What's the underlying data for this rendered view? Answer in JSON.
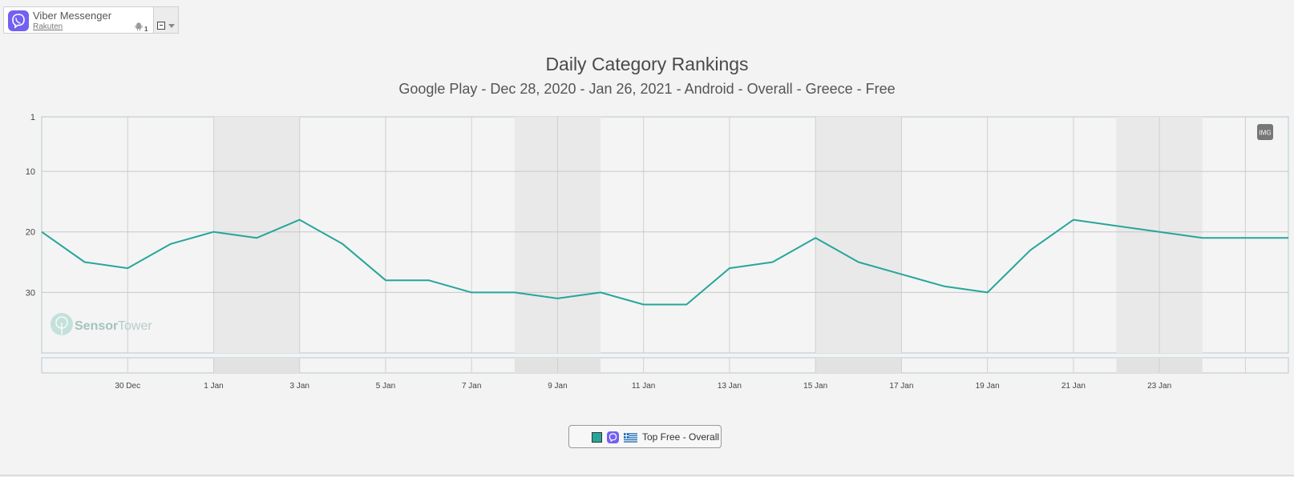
{
  "app": {
    "name": "Viber Messenger",
    "publisher": "Rakuten",
    "device_count": "1",
    "icon": "viber-icon",
    "platform_icon": "android-icon",
    "brand_color": "#7360f2"
  },
  "chart": {
    "title": "Daily Category Rankings",
    "subtitle": "Google Play - Dec 28, 2020 - Jan 26, 2021 - Android - Overall - Greece - Free",
    "export_label": "IMG",
    "watermark_a": "Sensor",
    "watermark_b": "Tower"
  },
  "legend": {
    "label": "Top Free - Overall",
    "flag_icon": "greece-flag-icon"
  },
  "chart_data": {
    "type": "line",
    "title": "Daily Category Rankings",
    "subtitle": "Google Play - Dec 28, 2020 - Jan 26, 2021 - Android - Overall - Greece - Free",
    "y_reversed": true,
    "ylim": [
      1,
      40
    ],
    "yticks": [
      1,
      10,
      20,
      30
    ],
    "grid": true,
    "legend_position": "bottom-center",
    "xticks": [
      "30 Dec",
      "1 Jan",
      "3 Jan",
      "5 Jan",
      "7 Jan",
      "9 Jan",
      "11 Jan",
      "13 Jan",
      "15 Jan",
      "17 Jan",
      "19 Jan",
      "21 Jan",
      "23 Jan"
    ],
    "weekends": [
      [
        "Jan 1",
        "Jan 3"
      ],
      [
        "Jan 8",
        "Jan 10"
      ],
      [
        "Jan 15",
        "Jan 17"
      ],
      [
        "Jan 22",
        "Jan 24"
      ]
    ],
    "series": [
      {
        "name": "Top Free - Overall",
        "color": "#26a69a",
        "x": [
          "Dec 28",
          "Dec 29",
          "Dec 30",
          "Dec 31",
          "Jan 1",
          "Jan 2",
          "Jan 3",
          "Jan 4",
          "Jan 5",
          "Jan 6",
          "Jan 7",
          "Jan 8",
          "Jan 9",
          "Jan 10",
          "Jan 11",
          "Jan 12",
          "Jan 13",
          "Jan 14",
          "Jan 15",
          "Jan 16",
          "Jan 17",
          "Jan 18",
          "Jan 19",
          "Jan 20",
          "Jan 21",
          "Jan 22",
          "Jan 23",
          "Jan 24",
          "Jan 25",
          "Jan 26"
        ],
        "values": [
          20,
          25,
          26,
          22,
          20,
          21,
          18,
          22,
          28,
          28,
          30,
          30,
          31,
          30,
          32,
          32,
          26,
          25,
          21,
          25,
          27,
          29,
          30,
          23,
          18,
          19,
          20,
          21,
          21,
          21
        ]
      }
    ]
  }
}
